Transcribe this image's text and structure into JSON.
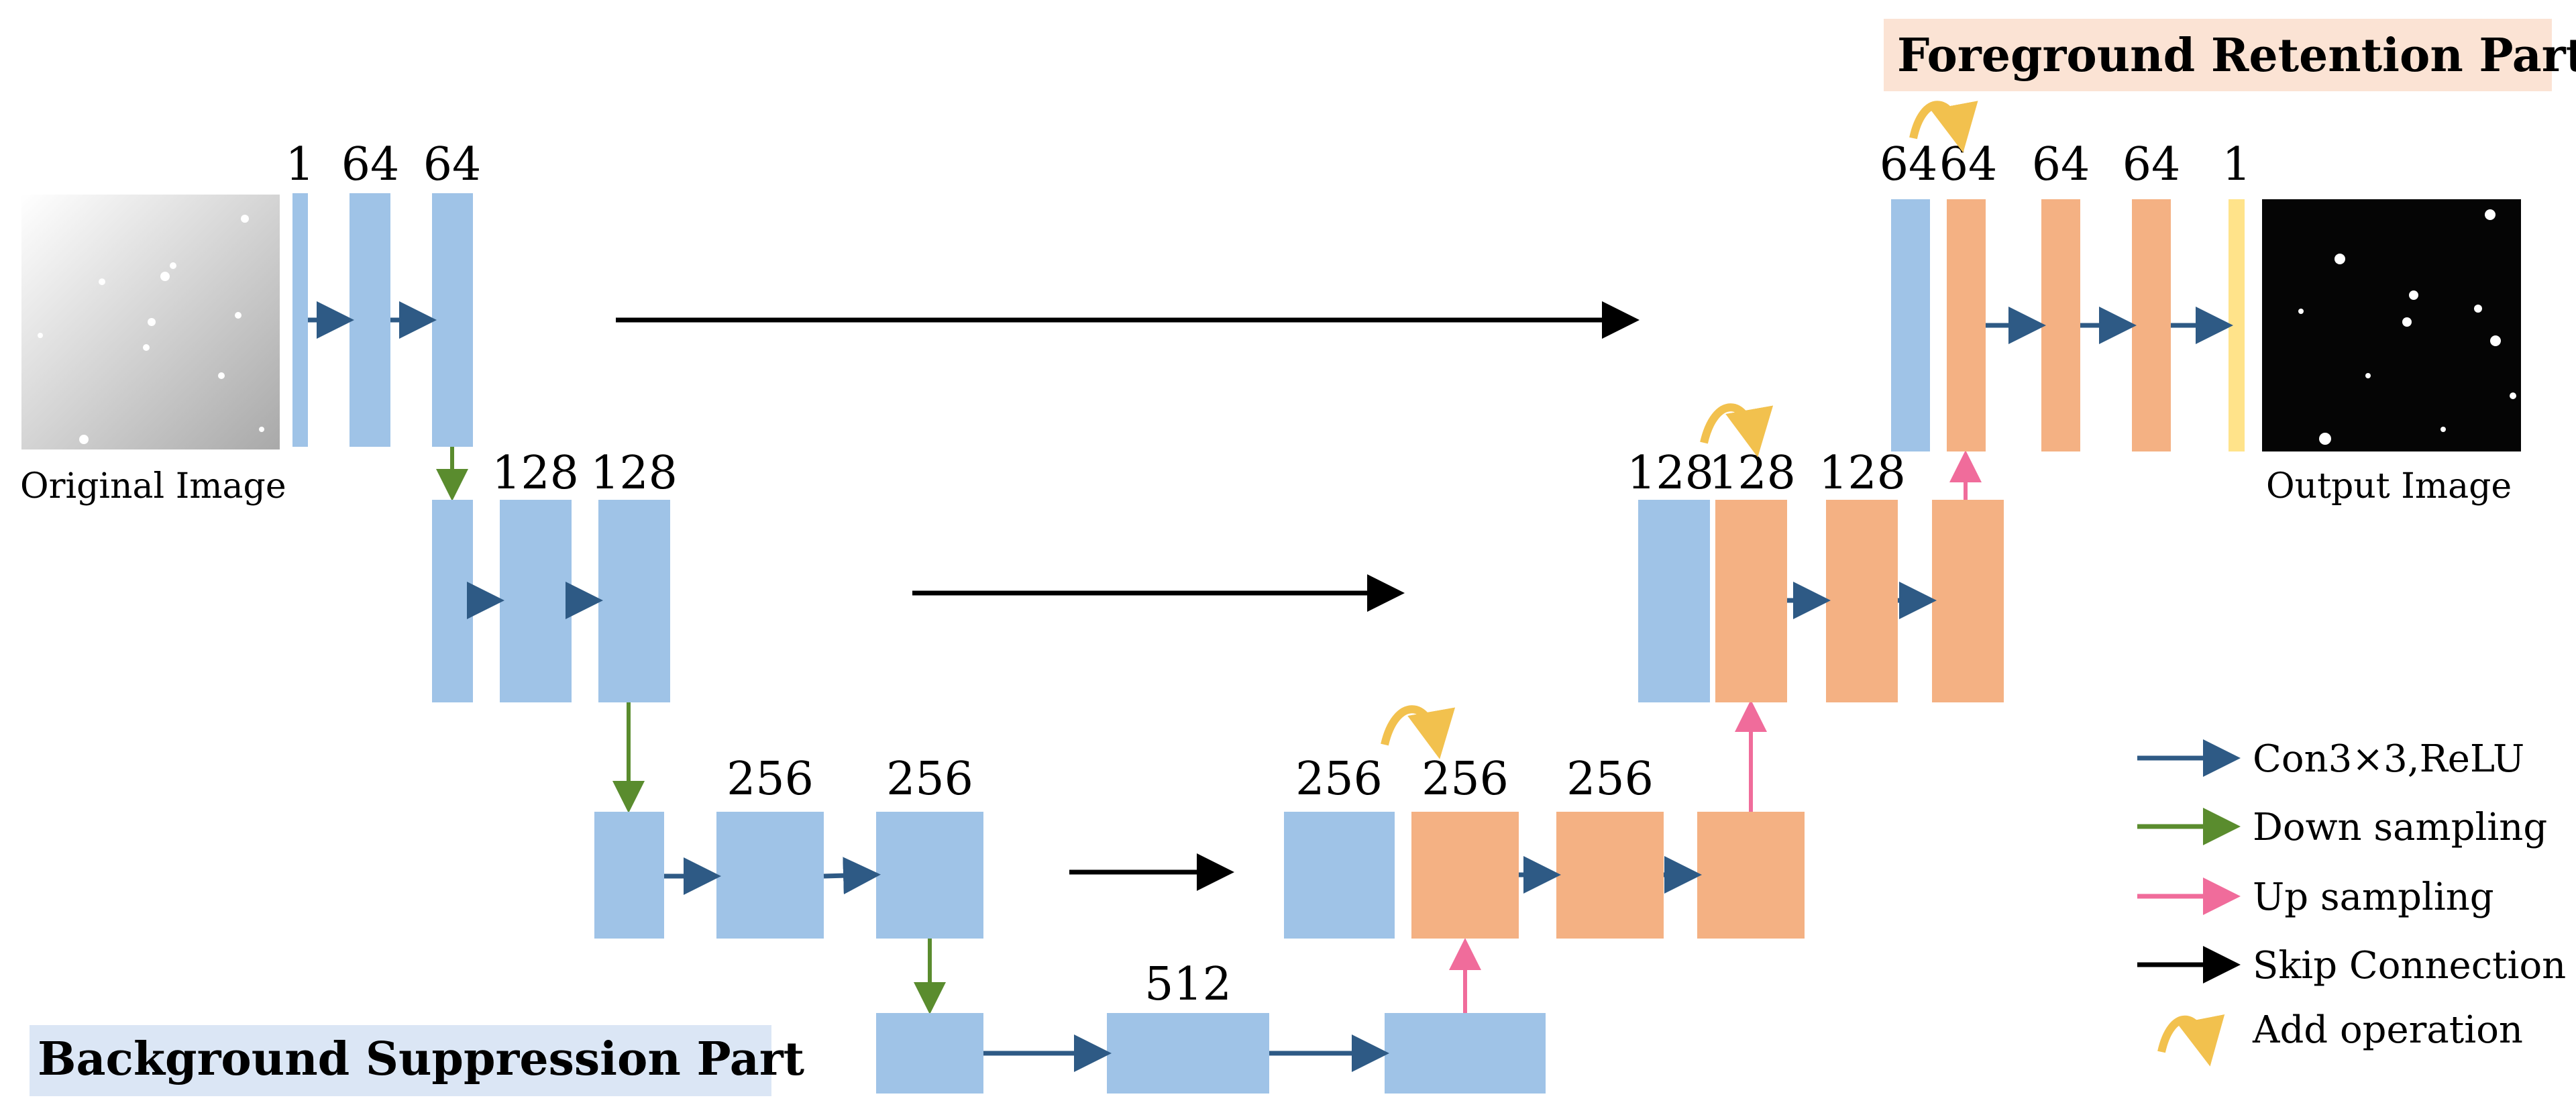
{
  "diagram": {
    "colors": {
      "encoder": "#9fc3e7",
      "decoder": "#f4b183",
      "output_layer": "#ffe38a",
      "conv_arrow": "#2e5a85",
      "down_arrow": "#5a8c2e",
      "up_arrow": "#f06c9b",
      "skip_arrow": "#000000",
      "add_arrow": "#f2c14e",
      "fg_banner": "#fbe3d4",
      "bg_banner": "#dbe6f5"
    },
    "channel_labels": {
      "enc1_a": "1",
      "enc1_b": "64",
      "enc1_c": "64",
      "enc2_b": "128",
      "enc2_c": "128",
      "enc3_b": "256",
      "enc3_c": "256",
      "bottleneck": "512",
      "dec3_a": "256",
      "dec3_b": "256",
      "dec3_c": "256",
      "dec2_a": "128",
      "dec2_b": "128",
      "dec2_c": "128",
      "dec1_a": "64",
      "dec1_b": "64",
      "dec1_c": "64",
      "dec1_d": "64",
      "out": "1"
    },
    "images": {
      "input_caption": "Original Image",
      "output_caption": "Output Image"
    },
    "parts": {
      "foreground": "Foreground Retention Part",
      "background": "Background Suppression Part"
    },
    "legend": [
      {
        "label": "Con3×3,ReLU",
        "color": "#2e5a85",
        "icon": "arrow-icon"
      },
      {
        "label": "Down sampling",
        "color": "#5a8c2e",
        "icon": "arrow-icon"
      },
      {
        "label": "Up sampling",
        "color": "#f06c9b",
        "icon": "arrow-icon"
      },
      {
        "label": "Skip Connection",
        "color": "#000000",
        "icon": "arrow-icon"
      },
      {
        "label": "Add operation",
        "color": "#f2c14e",
        "icon": "curved-arrow-icon"
      }
    ]
  }
}
